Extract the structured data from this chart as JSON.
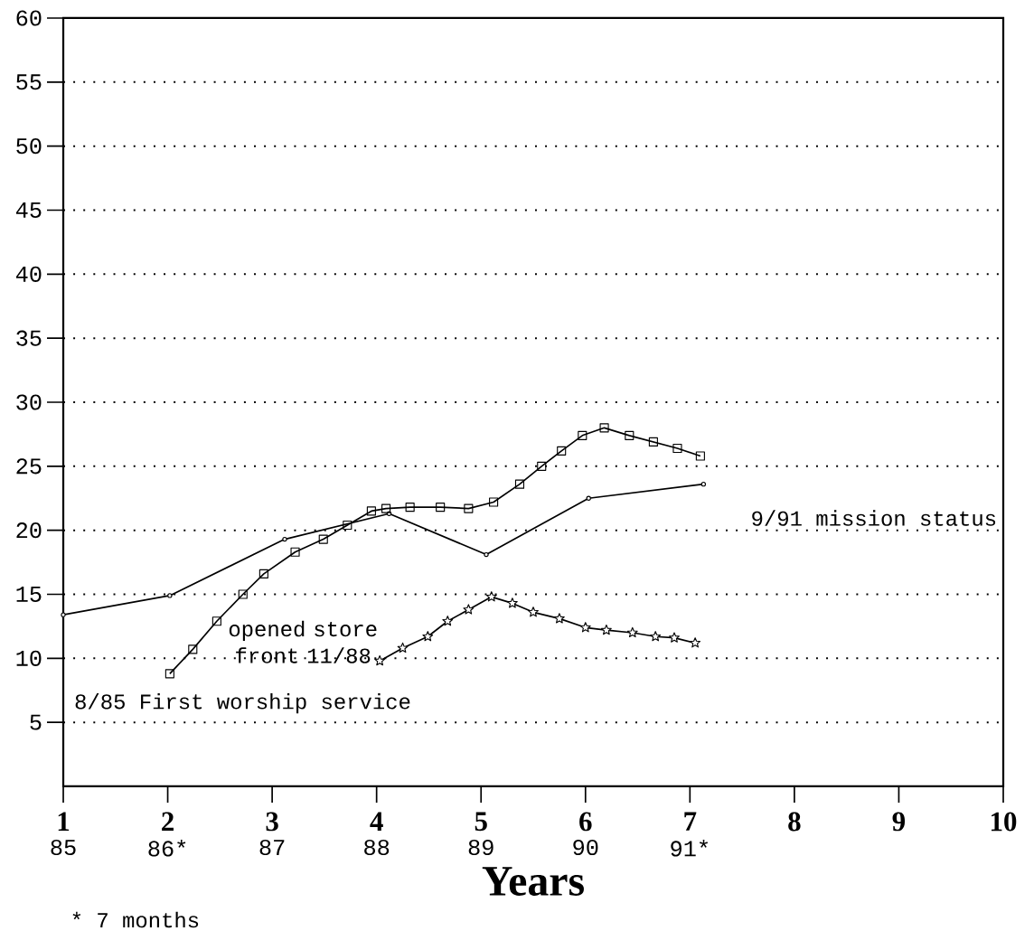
{
  "chart_data": {
    "type": "line",
    "xlabel": "Years",
    "xlim": [
      1,
      10
    ],
    "xticks": [
      1,
      2,
      3,
      4,
      5,
      6,
      7,
      8,
      9,
      10
    ],
    "x2lim": [
      85,
      94
    ],
    "x2ticks": [
      85,
      {
        "value": 86,
        "label": "86*"
      },
      87,
      88,
      89,
      90,
      {
        "value": 91,
        "label": "91*"
      }
    ],
    "ylim": [
      0,
      60
    ],
    "yticks": [
      5,
      10,
      15,
      20,
      25,
      30,
      35,
      40,
      45,
      50,
      55,
      60
    ],
    "grid": "y",
    "series": [
      {
        "color": "#000000",
        "marker": "circle",
        "x": [
          1,
          2.02,
          3.12,
          4.12,
          5.05,
          6.03,
          7.13
        ],
        "values": [
          13.4,
          14.9,
          19.3,
          21.3,
          18.1,
          22.5,
          23.6
        ]
      },
      {
        "color": "#000000",
        "marker": "square",
        "x": [
          2.02,
          2.24,
          2.47,
          2.72,
          2.92,
          3.22,
          3.49,
          3.72,
          3.95,
          4.09,
          4.32,
          4.61,
          4.88,
          5.12,
          5.37,
          5.58,
          5.77,
          5.97,
          6.18,
          6.42,
          6.65,
          6.88,
          7.1
        ],
        "values": [
          8.8,
          10.7,
          12.9,
          15.0,
          16.6,
          18.3,
          19.3,
          20.4,
          21.5,
          21.7,
          21.8,
          21.8,
          21.7,
          22.2,
          23.6,
          25.0,
          26.2,
          27.4,
          28.0,
          27.4,
          26.9,
          26.4,
          25.8
        ]
      },
      {
        "color": "#000000",
        "marker": "star",
        "x": [
          4.03,
          4.25,
          4.49,
          4.68,
          4.88,
          5.1,
          5.3,
          5.5,
          5.75,
          6.0,
          6.2,
          6.45,
          6.67,
          6.85,
          7.05
        ],
        "values": [
          9.8,
          10.8,
          11.7,
          12.9,
          13.8,
          14.8,
          14.3,
          13.6,
          13.1,
          12.4,
          12.2,
          12.0,
          11.7,
          11.6,
          11.2
        ]
      }
    ],
    "annotations": [
      "8/85 First worship service",
      "opened store front 11/88",
      "9/91 mission status",
      "* 7 months"
    ]
  }
}
